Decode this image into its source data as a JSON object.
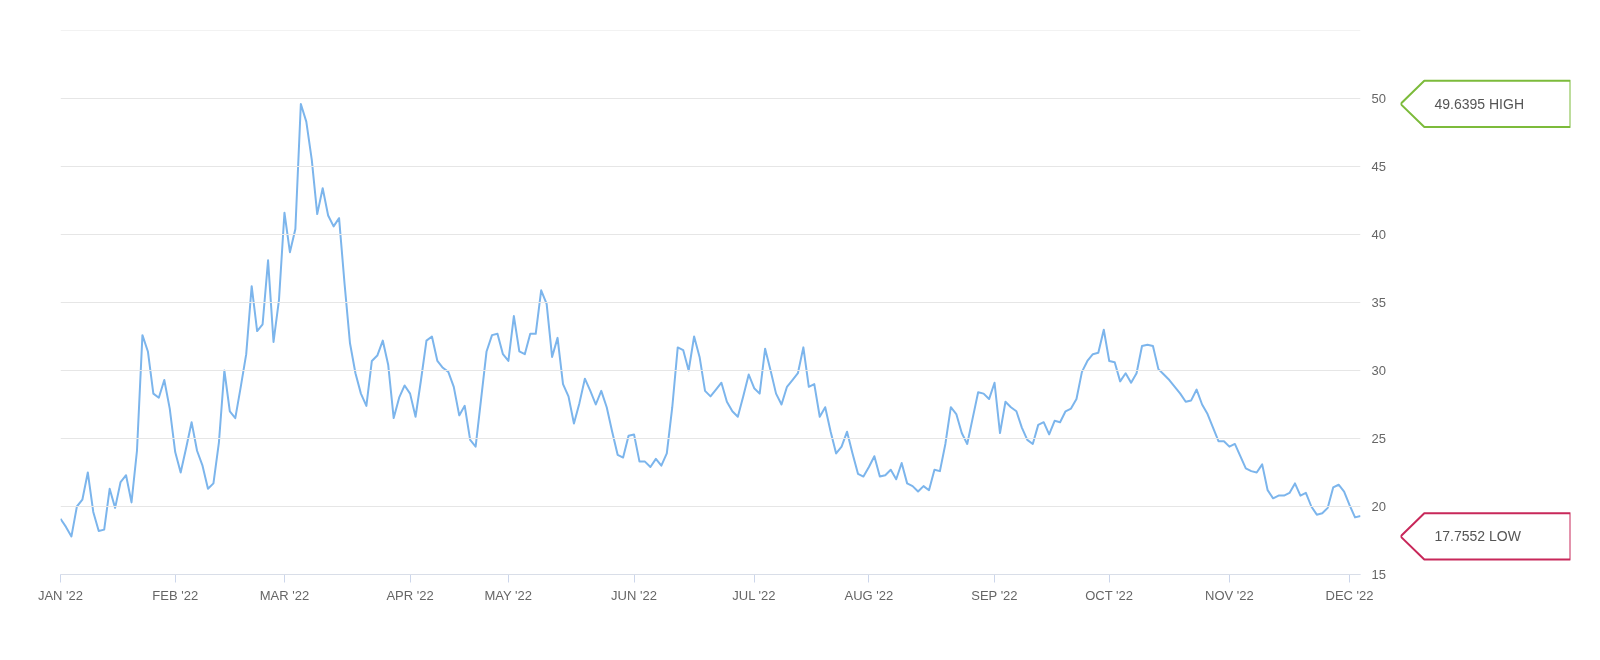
{
  "chart_data": {
    "type": "line",
    "categories": [
      "JAN '22",
      null,
      null,
      null,
      null,
      null,
      null,
      null,
      null,
      null,
      null,
      null,
      null,
      null,
      null,
      null,
      null,
      null,
      null,
      null,
      null,
      "FEB '22",
      null,
      null,
      null,
      null,
      null,
      null,
      null,
      null,
      null,
      null,
      null,
      null,
      null,
      null,
      null,
      null,
      null,
      null,
      null,
      "MAR '22",
      null,
      null,
      null,
      null,
      null,
      null,
      null,
      null,
      null,
      null,
      null,
      null,
      null,
      null,
      null,
      null,
      null,
      null,
      null,
      null,
      null,
      null,
      "APR '22",
      null,
      null,
      null,
      null,
      null,
      null,
      null,
      null,
      null,
      null,
      null,
      null,
      null,
      null,
      null,
      null,
      null,
      "MAY '22",
      null,
      null,
      null,
      null,
      null,
      null,
      null,
      null,
      null,
      null,
      null,
      null,
      null,
      null,
      null,
      null,
      null,
      null,
      null,
      null,
      null,
      null,
      "JUN '22",
      null,
      null,
      null,
      null,
      null,
      null,
      null,
      null,
      null,
      null,
      null,
      null,
      null,
      null,
      null,
      null,
      null,
      null,
      null,
      null,
      null,
      "JUL '22",
      null,
      null,
      null,
      null,
      null,
      null,
      null,
      null,
      null,
      null,
      null,
      null,
      null,
      null,
      null,
      null,
      null,
      null,
      null,
      null,
      "AUG '22",
      null,
      null,
      null,
      null,
      null,
      null,
      null,
      null,
      null,
      null,
      null,
      null,
      null,
      null,
      null,
      null,
      null,
      null,
      null,
      null,
      null,
      null,
      "SEP '22",
      null,
      null,
      null,
      null,
      null,
      null,
      null,
      null,
      null,
      null,
      null,
      null,
      null,
      null,
      null,
      null,
      null,
      null,
      null,
      null,
      "OCT '22",
      null,
      null,
      null,
      null,
      null,
      null,
      null,
      null,
      null,
      null,
      null,
      null,
      null,
      null,
      null,
      null,
      null,
      null,
      null,
      null,
      null,
      "NOV '22",
      null,
      null,
      null,
      null,
      null,
      null,
      null,
      null,
      null,
      null,
      null,
      null,
      null,
      null,
      null,
      null,
      null,
      null,
      null,
      null,
      null,
      "DEC '22",
      null,
      null
    ],
    "series": [
      {
        "color": "#7cb5ec",
        "values": [
          19.1,
          18.5,
          17.8,
          20.0,
          20.5,
          22.5,
          19.6,
          18.2,
          18.3,
          21.3,
          19.9,
          21.8,
          22.3,
          20.3,
          24.1,
          32.6,
          31.4,
          28.3,
          28.0,
          29.3,
          27.2,
          24.0,
          22.5,
          24.3,
          26.2,
          24.1,
          23.0,
          21.3,
          21.7,
          24.7,
          30.0,
          27.0,
          26.5,
          28.8,
          31.2,
          36.2,
          32.9,
          33.4,
          38.1,
          32.1,
          35.2,
          41.6,
          38.7,
          40.4,
          49.6,
          48.3,
          45.5,
          41.5,
          43.4,
          41.4,
          40.6,
          41.2,
          36.4,
          32.0,
          29.8,
          28.3,
          27.4,
          30.7,
          31.1,
          32.2,
          30.4,
          26.5,
          28.0,
          28.9,
          28.3,
          26.6,
          29.3,
          32.2,
          32.5,
          30.7,
          30.2,
          29.9,
          28.8,
          26.7,
          27.4,
          24.9,
          24.4,
          27.9,
          31.4,
          32.6,
          32.7,
          31.2,
          30.7,
          34.0,
          31.4,
          31.2,
          32.7,
          32.7,
          35.9,
          34.9,
          31.0,
          32.4,
          29.0,
          28.1,
          26.1,
          27.6,
          29.4,
          28.5,
          27.5,
          28.5,
          27.3,
          25.5,
          23.8,
          23.6,
          25.2,
          25.3,
          23.3,
          23.3,
          22.9,
          23.5,
          23.0,
          23.9,
          27.3,
          31.7,
          31.5,
          30.0,
          32.5,
          31.0,
          28.5,
          28.1,
          28.6,
          29.1,
          27.7,
          27.0,
          26.6,
          28.1,
          29.7,
          28.7,
          28.3,
          31.6,
          30.0,
          28.3,
          27.5,
          28.8,
          29.3,
          29.8,
          31.7,
          28.8,
          29.0,
          26.6,
          27.3,
          25.5,
          23.9,
          24.4,
          25.5,
          23.9,
          22.4,
          22.2,
          22.9,
          23.7,
          22.2,
          22.3,
          22.7,
          22.0,
          23.2,
          21.7,
          21.5,
          21.1,
          21.5,
          21.2,
          22.7,
          22.6,
          24.6,
          27.3,
          26.8,
          25.4,
          24.6,
          26.5,
          28.4,
          28.3,
          27.9,
          29.1,
          25.4,
          27.7,
          27.3,
          27.0,
          25.8,
          24.9,
          24.6,
          26.0,
          26.2,
          25.3,
          26.3,
          26.2,
          27.0,
          27.2,
          27.9,
          29.9,
          30.7,
          31.2,
          31.3,
          33.0,
          30.7,
          30.6,
          29.2,
          29.8,
          29.1,
          29.8,
          31.8,
          31.9,
          31.8,
          30.1,
          29.7,
          29.3,
          28.8,
          28.3,
          27.7,
          27.8,
          28.6,
          27.5,
          26.8,
          25.8,
          24.8,
          24.8,
          24.4,
          24.6,
          23.7,
          22.8,
          22.6,
          22.5,
          23.1,
          21.2,
          20.6,
          20.8,
          20.8,
          21.0,
          21.7,
          20.8,
          21.0,
          20.0,
          19.4,
          19.5,
          19.9,
          21.4,
          21.6,
          21.1,
          20.1,
          19.2,
          19.3
        ]
      }
    ],
    "ylim": [
      15,
      55
    ],
    "yticks": [
      15,
      20,
      25,
      30,
      35,
      40,
      45,
      50,
      {
        "value": 55,
        "label": null
      }
    ],
    "grid": "y",
    "annotations": [
      "49.6395 HIGH",
      "17.7552 LOW"
    ]
  }
}
